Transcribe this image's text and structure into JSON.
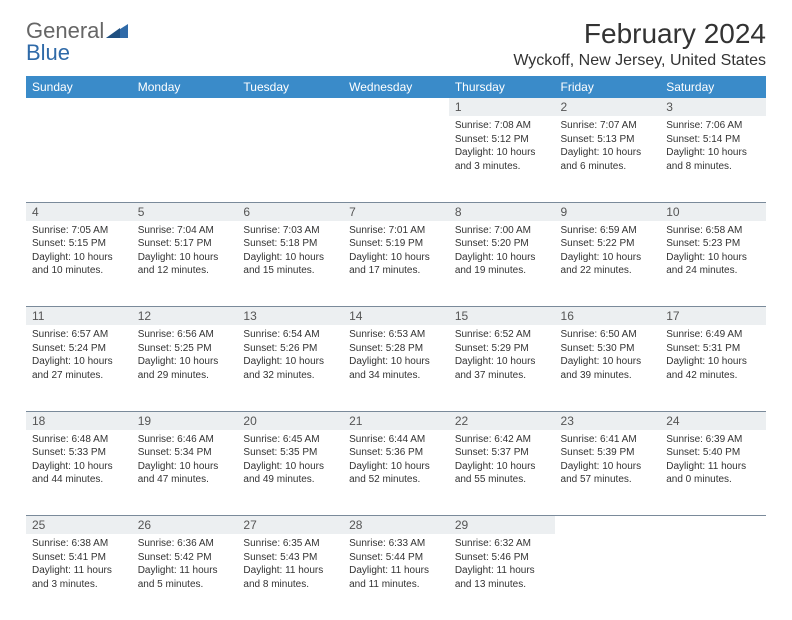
{
  "brand": {
    "part1": "General",
    "part2": "Blue",
    "color1": "#666666",
    "color2": "#2f6aa8"
  },
  "title": "February 2024",
  "location": "Wyckoff, New Jersey, United States",
  "colors": {
    "header_bg": "#3a8bc9",
    "header_text": "#ffffff",
    "daynum_bg": "#eceff1",
    "border": "#7a8a9a",
    "body_text": "#333333"
  },
  "weekdays": [
    "Sunday",
    "Monday",
    "Tuesday",
    "Wednesday",
    "Thursday",
    "Friday",
    "Saturday"
  ],
  "weeks": [
    [
      null,
      null,
      null,
      null,
      {
        "n": "1",
        "sunrise": "7:08 AM",
        "sunset": "5:12 PM",
        "dl": "10 hours and 3 minutes."
      },
      {
        "n": "2",
        "sunrise": "7:07 AM",
        "sunset": "5:13 PM",
        "dl": "10 hours and 6 minutes."
      },
      {
        "n": "3",
        "sunrise": "7:06 AM",
        "sunset": "5:14 PM",
        "dl": "10 hours and 8 minutes."
      }
    ],
    [
      {
        "n": "4",
        "sunrise": "7:05 AM",
        "sunset": "5:15 PM",
        "dl": "10 hours and 10 minutes."
      },
      {
        "n": "5",
        "sunrise": "7:04 AM",
        "sunset": "5:17 PM",
        "dl": "10 hours and 12 minutes."
      },
      {
        "n": "6",
        "sunrise": "7:03 AM",
        "sunset": "5:18 PM",
        "dl": "10 hours and 15 minutes."
      },
      {
        "n": "7",
        "sunrise": "7:01 AM",
        "sunset": "5:19 PM",
        "dl": "10 hours and 17 minutes."
      },
      {
        "n": "8",
        "sunrise": "7:00 AM",
        "sunset": "5:20 PM",
        "dl": "10 hours and 19 minutes."
      },
      {
        "n": "9",
        "sunrise": "6:59 AM",
        "sunset": "5:22 PM",
        "dl": "10 hours and 22 minutes."
      },
      {
        "n": "10",
        "sunrise": "6:58 AM",
        "sunset": "5:23 PM",
        "dl": "10 hours and 24 minutes."
      }
    ],
    [
      {
        "n": "11",
        "sunrise": "6:57 AM",
        "sunset": "5:24 PM",
        "dl": "10 hours and 27 minutes."
      },
      {
        "n": "12",
        "sunrise": "6:56 AM",
        "sunset": "5:25 PM",
        "dl": "10 hours and 29 minutes."
      },
      {
        "n": "13",
        "sunrise": "6:54 AM",
        "sunset": "5:26 PM",
        "dl": "10 hours and 32 minutes."
      },
      {
        "n": "14",
        "sunrise": "6:53 AM",
        "sunset": "5:28 PM",
        "dl": "10 hours and 34 minutes."
      },
      {
        "n": "15",
        "sunrise": "6:52 AM",
        "sunset": "5:29 PM",
        "dl": "10 hours and 37 minutes."
      },
      {
        "n": "16",
        "sunrise": "6:50 AM",
        "sunset": "5:30 PM",
        "dl": "10 hours and 39 minutes."
      },
      {
        "n": "17",
        "sunrise": "6:49 AM",
        "sunset": "5:31 PM",
        "dl": "10 hours and 42 minutes."
      }
    ],
    [
      {
        "n": "18",
        "sunrise": "6:48 AM",
        "sunset": "5:33 PM",
        "dl": "10 hours and 44 minutes."
      },
      {
        "n": "19",
        "sunrise": "6:46 AM",
        "sunset": "5:34 PM",
        "dl": "10 hours and 47 minutes."
      },
      {
        "n": "20",
        "sunrise": "6:45 AM",
        "sunset": "5:35 PM",
        "dl": "10 hours and 49 minutes."
      },
      {
        "n": "21",
        "sunrise": "6:44 AM",
        "sunset": "5:36 PM",
        "dl": "10 hours and 52 minutes."
      },
      {
        "n": "22",
        "sunrise": "6:42 AM",
        "sunset": "5:37 PM",
        "dl": "10 hours and 55 minutes."
      },
      {
        "n": "23",
        "sunrise": "6:41 AM",
        "sunset": "5:39 PM",
        "dl": "10 hours and 57 minutes."
      },
      {
        "n": "24",
        "sunrise": "6:39 AM",
        "sunset": "5:40 PM",
        "dl": "11 hours and 0 minutes."
      }
    ],
    [
      {
        "n": "25",
        "sunrise": "6:38 AM",
        "sunset": "5:41 PM",
        "dl": "11 hours and 3 minutes."
      },
      {
        "n": "26",
        "sunrise": "6:36 AM",
        "sunset": "5:42 PM",
        "dl": "11 hours and 5 minutes."
      },
      {
        "n": "27",
        "sunrise": "6:35 AM",
        "sunset": "5:43 PM",
        "dl": "11 hours and 8 minutes."
      },
      {
        "n": "28",
        "sunrise": "6:33 AM",
        "sunset": "5:44 PM",
        "dl": "11 hours and 11 minutes."
      },
      {
        "n": "29",
        "sunrise": "6:32 AM",
        "sunset": "5:46 PM",
        "dl": "11 hours and 13 minutes."
      },
      null,
      null
    ]
  ],
  "labels": {
    "sunrise": "Sunrise: ",
    "sunset": "Sunset: ",
    "daylight": "Daylight: "
  }
}
